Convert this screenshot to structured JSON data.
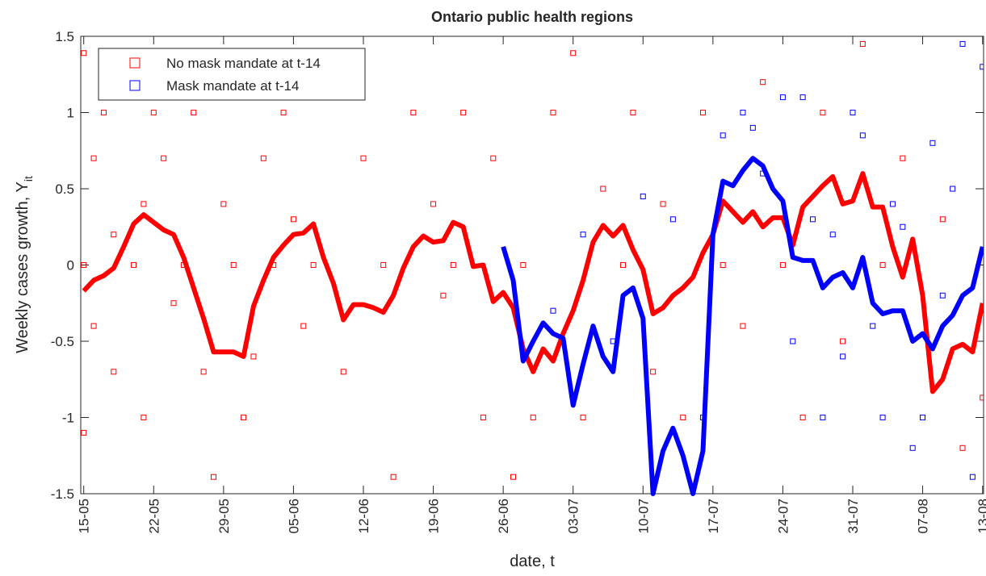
{
  "chart_data": {
    "type": "scatter",
    "title": "Ontario public health regions",
    "xlabel": "date, t",
    "ylabel": "Weekly cases growth, Y",
    "ylabel_subscript": "it",
    "xlim": [
      -0.3,
      90.1
    ],
    "ylim": [
      -1.5,
      1.5
    ],
    "xticks": [
      {
        "value": 0,
        "label": "15-05"
      },
      {
        "value": 7,
        "label": "22-05"
      },
      {
        "value": 14,
        "label": "29-05"
      },
      {
        "value": 21,
        "label": "05-06"
      },
      {
        "value": 28,
        "label": "12-06"
      },
      {
        "value": 35,
        "label": "19-06"
      },
      {
        "value": 42,
        "label": "26-06"
      },
      {
        "value": 49,
        "label": "03-07"
      },
      {
        "value": 56,
        "label": "10-07"
      },
      {
        "value": 63,
        "label": "17-07"
      },
      {
        "value": 70,
        "label": "24-07"
      },
      {
        "value": 77,
        "label": "31-07"
      },
      {
        "value": 84,
        "label": "07-08"
      },
      {
        "value": 90,
        "label": "13-08"
      }
    ],
    "yticks": [
      -1.5,
      -1,
      -0.5,
      0,
      0.5,
      1,
      1.5
    ],
    "legend": "upper left",
    "series": [
      {
        "name": "No mask mandate at t-14",
        "color": "#ff0000",
        "x": [
          0,
          0,
          0,
          1,
          1,
          2,
          3,
          3,
          4,
          5,
          6,
          6,
          7,
          8,
          9,
          10,
          11,
          12,
          13,
          14,
          15,
          16,
          17,
          18,
          19,
          20,
          21,
          22,
          23,
          24,
          26,
          28,
          30,
          31,
          33,
          35,
          36,
          37,
          38,
          40,
          41,
          43,
          44,
          45,
          47,
          49,
          50,
          52,
          54,
          55,
          57,
          58,
          60,
          62,
          64,
          66,
          68,
          70,
          72,
          74,
          76,
          78,
          80,
          82,
          84,
          86,
          88,
          90
        ],
        "y": [
          1.39,
          0,
          -1.1,
          0.7,
          -0.4,
          1.0,
          0.2,
          -0.7,
          1.39,
          0,
          0.4,
          -1.0,
          1.0,
          0.7,
          -0.25,
          0,
          1.0,
          -0.7,
          -1.39,
          0.4,
          0,
          -1.0,
          -0.6,
          0.7,
          0,
          1.0,
          0.3,
          -0.4,
          0,
          1.39,
          -0.7,
          0.7,
          0,
          -1.39,
          1.0,
          0.4,
          -0.2,
          0,
          1.0,
          -1.0,
          0.7,
          -1.39,
          0.0,
          -1.0,
          1.0,
          1.39,
          -1.0,
          0.5,
          0,
          1.0,
          -0.7,
          0.4,
          -1.0,
          1.0,
          0,
          -0.4,
          1.2,
          0,
          -1.0,
          1.0,
          -0.5,
          1.45,
          0,
          0.7,
          -1.0,
          0.3,
          -1.2,
          -0.87
        ]
      },
      {
        "name": "Mask mandate at t-14",
        "color": "#0000ff",
        "x": [
          44,
          47,
          50,
          53,
          56,
          59,
          62,
          64,
          66,
          67,
          68,
          70,
          71,
          72,
          73,
          74,
          75,
          76,
          77,
          78,
          79,
          80,
          81,
          82,
          83,
          84,
          85,
          86,
          87,
          88,
          89,
          90
        ],
        "y": [
          -0.6,
          -0.3,
          0.2,
          -0.5,
          0.45,
          0.3,
          -1.0,
          0.85,
          1.0,
          0.9,
          0.6,
          1.1,
          -0.5,
          1.1,
          0.3,
          -1.0,
          0.2,
          -0.6,
          1.0,
          0.85,
          -0.4,
          -1.0,
          0.4,
          0.25,
          -1.2,
          -1.0,
          0.8,
          -0.2,
          0.5,
          1.45,
          -1.39,
          1.3
        ]
      }
    ],
    "x": [
      0,
      1,
      2,
      3,
      4,
      5,
      6,
      7,
      8,
      9,
      10,
      11,
      12,
      13,
      14,
      15,
      16,
      17,
      18,
      19,
      20,
      21,
      22,
      23,
      24,
      25,
      26,
      27,
      28,
      29,
      30,
      31,
      32,
      33,
      34,
      35,
      36,
      37,
      38,
      39,
      40,
      41,
      42,
      43,
      44,
      45,
      46,
      47,
      48,
      49,
      50,
      51,
      52,
      53,
      54,
      55,
      56,
      57,
      58,
      59,
      60,
      61,
      62,
      63,
      64,
      65,
      66,
      67,
      68,
      69,
      70,
      71,
      72,
      73,
      74,
      75,
      76,
      77,
      78,
      79,
      80,
      81,
      82,
      83,
      84,
      85,
      86,
      87,
      88,
      89,
      90
    ],
    "lines": [
      {
        "color": "#ff0000",
        "values": [
          -0.17,
          -0.1,
          -0.07,
          -0.02,
          0.12,
          0.27,
          0.33,
          0.28,
          0.23,
          0.2,
          0.05,
          -0.15,
          -0.35,
          -0.57,
          -0.57,
          -0.57,
          -0.6,
          -0.27,
          -0.1,
          0.05,
          0.13,
          0.2,
          0.21,
          0.27,
          0.05,
          -0.12,
          -0.36,
          -0.26,
          -0.26,
          -0.28,
          -0.31,
          -0.2,
          -0.02,
          0.12,
          0.19,
          0.15,
          0.16,
          0.28,
          0.25,
          -0.01,
          0,
          -0.24,
          -0.18,
          -0.28,
          -0.55,
          -0.7,
          -0.55,
          -0.63,
          -0.45,
          -0.3,
          -0.1,
          0.15,
          0.26,
          0.19,
          0.26,
          0.1,
          -0.03,
          -0.32,
          -0.28,
          -0.2,
          -0.15,
          -0.08,
          0.08,
          0.2,
          0.42,
          0.35,
          0.28,
          0.35,
          0.25,
          0.31,
          0.31,
          0.13,
          0.38,
          0.45,
          0.52,
          0.58,
          0.4,
          0.42,
          0.6,
          0.38,
          0.38,
          0.12,
          -0.08,
          0.17,
          -0.2,
          -0.83,
          -0.75,
          -0.55,
          -0.52,
          -0.57,
          -0.25
        ]
      },
      {
        "color": "#0000ff",
        "values": [
          null,
          null,
          null,
          null,
          null,
          null,
          null,
          null,
          null,
          null,
          null,
          null,
          null,
          null,
          null,
          null,
          null,
          null,
          null,
          null,
          null,
          null,
          null,
          null,
          null,
          null,
          null,
          null,
          null,
          null,
          null,
          null,
          null,
          null,
          null,
          null,
          null,
          null,
          null,
          null,
          null,
          null,
          0.12,
          -0.1,
          -0.63,
          -0.5,
          -0.38,
          -0.45,
          -0.48,
          -0.92,
          -0.65,
          -0.4,
          -0.6,
          -0.7,
          -0.2,
          -0.15,
          -0.35,
          -1.5,
          -1.22,
          -1.07,
          -1.25,
          -1.5,
          -1.22,
          0.2,
          0.55,
          0.52,
          0.62,
          0.7,
          0.65,
          0.5,
          0.42,
          0.05,
          0.03,
          0.03,
          -0.15,
          -0.08,
          -0.05,
          -0.15,
          0.05,
          -0.25,
          -0.32,
          -0.3,
          -0.3,
          -0.5,
          -0.45,
          -0.55,
          -0.4,
          -0.33,
          -0.2,
          -0.15,
          0.12
        ]
      }
    ]
  }
}
